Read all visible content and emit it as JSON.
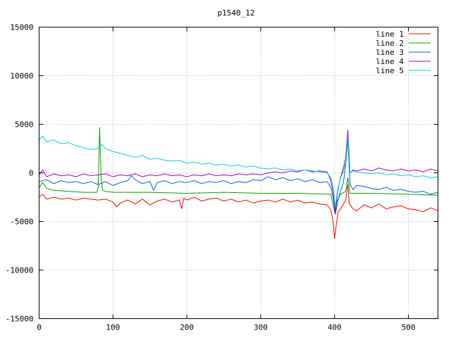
{
  "chart_data": {
    "type": "line",
    "title": "p1540_12",
    "xlabel": "",
    "ylabel": "",
    "xlim": [
      0,
      540
    ],
    "ylim": [
      -15000,
      15000
    ],
    "x_ticks": [
      0,
      100,
      200,
      300,
      400,
      500
    ],
    "y_ticks": [
      -15000,
      -10000,
      -5000,
      0,
      5000,
      10000,
      15000
    ],
    "grid": true,
    "legend_position": "top-right",
    "series": [
      {
        "name": "line 1",
        "color": "#ff0000",
        "points": [
          [
            0,
            -2500
          ],
          [
            5,
            -2200
          ],
          [
            10,
            -2700
          ],
          [
            20,
            -2500
          ],
          [
            30,
            -2700
          ],
          [
            40,
            -2600
          ],
          [
            50,
            -2800
          ],
          [
            60,
            -2600
          ],
          [
            70,
            -2700
          ],
          [
            80,
            -2800
          ],
          [
            90,
            -2700
          ],
          [
            100,
            -3000
          ],
          [
            105,
            -3500
          ],
          [
            110,
            -3100
          ],
          [
            120,
            -2800
          ],
          [
            130,
            -3200
          ],
          [
            140,
            -2700
          ],
          [
            150,
            -3300
          ],
          [
            160,
            -2900
          ],
          [
            170,
            -2700
          ],
          [
            180,
            -3000
          ],
          [
            190,
            -2800
          ],
          [
            193,
            -3700
          ],
          [
            196,
            -2600
          ],
          [
            200,
            -2800
          ],
          [
            210,
            -2500
          ],
          [
            220,
            -2900
          ],
          [
            230,
            -2700
          ],
          [
            240,
            -2600
          ],
          [
            250,
            -2900
          ],
          [
            260,
            -2700
          ],
          [
            270,
            -3000
          ],
          [
            280,
            -2800
          ],
          [
            290,
            -3100
          ],
          [
            300,
            -2900
          ],
          [
            310,
            -2800
          ],
          [
            320,
            -3000
          ],
          [
            330,
            -2700
          ],
          [
            340,
            -3000
          ],
          [
            350,
            -2800
          ],
          [
            360,
            -3100
          ],
          [
            370,
            -3000
          ],
          [
            380,
            -3200
          ],
          [
            390,
            -3300
          ],
          [
            395,
            -3800
          ],
          [
            398,
            -5000
          ],
          [
            400,
            -6800
          ],
          [
            402,
            -5500
          ],
          [
            405,
            -4000
          ],
          [
            410,
            -3500
          ],
          [
            415,
            -2800
          ],
          [
            418,
            -1200
          ],
          [
            420,
            -3200
          ],
          [
            425,
            -3700
          ],
          [
            430,
            -3900
          ],
          [
            440,
            -3300
          ],
          [
            450,
            -3600
          ],
          [
            460,
            -3200
          ],
          [
            470,
            -3700
          ],
          [
            480,
            -3500
          ],
          [
            490,
            -3400
          ],
          [
            500,
            -3700
          ],
          [
            510,
            -3800
          ],
          [
            520,
            -4000
          ],
          [
            530,
            -3600
          ],
          [
            540,
            -3900
          ]
        ]
      },
      {
        "name": "line 2",
        "color": "#00a000",
        "points": [
          [
            0,
            -1500
          ],
          [
            5,
            -1000
          ],
          [
            10,
            -1600
          ],
          [
            20,
            -1800
          ],
          [
            40,
            -1900
          ],
          [
            60,
            -2000
          ],
          [
            78,
            -2000
          ],
          [
            80,
            -1500
          ],
          [
            82,
            4700
          ],
          [
            84,
            -500
          ],
          [
            86,
            -1800
          ],
          [
            90,
            -1900
          ],
          [
            100,
            -2000
          ],
          [
            150,
            -2000
          ],
          [
            200,
            -2100
          ],
          [
            250,
            -2000
          ],
          [
            300,
            -2100
          ],
          [
            350,
            -2100
          ],
          [
            395,
            -2200
          ],
          [
            400,
            -4000
          ],
          [
            403,
            -3000
          ],
          [
            408,
            -2200
          ],
          [
            415,
            -1900
          ],
          [
            418,
            -500
          ],
          [
            421,
            -2100
          ],
          [
            450,
            -2100
          ],
          [
            500,
            -2200
          ],
          [
            540,
            -2300
          ]
        ]
      },
      {
        "name": "line 3",
        "color": "#0060e0",
        "points": [
          [
            0,
            -900
          ],
          [
            10,
            -700
          ],
          [
            20,
            -1100
          ],
          [
            30,
            -800
          ],
          [
            40,
            -1000
          ],
          [
            50,
            -900
          ],
          [
            60,
            -1100
          ],
          [
            70,
            -900
          ],
          [
            80,
            -1200
          ],
          [
            90,
            -900
          ],
          [
            100,
            -1300
          ],
          [
            110,
            -1000
          ],
          [
            120,
            -800
          ],
          [
            125,
            -300
          ],
          [
            130,
            -700
          ],
          [
            140,
            -1100
          ],
          [
            150,
            -900
          ],
          [
            155,
            -1800
          ],
          [
            160,
            -1000
          ],
          [
            170,
            -800
          ],
          [
            180,
            -1100
          ],
          [
            190,
            -900
          ],
          [
            200,
            -1000
          ],
          [
            210,
            -800
          ],
          [
            220,
            -1100
          ],
          [
            230,
            -900
          ],
          [
            240,
            -1000
          ],
          [
            250,
            -800
          ],
          [
            260,
            -1100
          ],
          [
            270,
            -900
          ],
          [
            280,
            -1000
          ],
          [
            290,
            -700
          ],
          [
            300,
            -800
          ],
          [
            310,
            -400
          ],
          [
            320,
            -700
          ],
          [
            330,
            -500
          ],
          [
            340,
            -800
          ],
          [
            350,
            -600
          ],
          [
            360,
            -900
          ],
          [
            370,
            -700
          ],
          [
            380,
            -1000
          ],
          [
            390,
            -900
          ],
          [
            395,
            -1500
          ],
          [
            398,
            -2500
          ],
          [
            401,
            -4300
          ],
          [
            404,
            -3000
          ],
          [
            408,
            -1900
          ],
          [
            412,
            -1000
          ],
          [
            415,
            800
          ],
          [
            418,
            3300
          ],
          [
            421,
            -1200
          ],
          [
            425,
            -1700
          ],
          [
            430,
            -1300
          ],
          [
            440,
            -1400
          ],
          [
            450,
            -1600
          ],
          [
            460,
            -1700
          ],
          [
            470,
            -1500
          ],
          [
            480,
            -1800
          ],
          [
            490,
            -1700
          ],
          [
            500,
            -1900
          ],
          [
            510,
            -2000
          ],
          [
            520,
            -1900
          ],
          [
            530,
            -2200
          ],
          [
            540,
            -2000
          ]
        ]
      },
      {
        "name": "line 4",
        "color": "#a000c0",
        "points": [
          [
            0,
            -200
          ],
          [
            5,
            300
          ],
          [
            10,
            -400
          ],
          [
            20,
            -100
          ],
          [
            30,
            -300
          ],
          [
            40,
            -200
          ],
          [
            50,
            -400
          ],
          [
            60,
            -100
          ],
          [
            70,
            -300
          ],
          [
            80,
            -200
          ],
          [
            90,
            -100
          ],
          [
            100,
            -400
          ],
          [
            110,
            -200
          ],
          [
            120,
            -300
          ],
          [
            130,
            -100
          ],
          [
            140,
            -400
          ],
          [
            150,
            -200
          ],
          [
            160,
            -300
          ],
          [
            170,
            -100
          ],
          [
            180,
            -300
          ],
          [
            190,
            -200
          ],
          [
            200,
            -400
          ],
          [
            210,
            -200
          ],
          [
            220,
            -300
          ],
          [
            230,
            -100
          ],
          [
            240,
            -300
          ],
          [
            250,
            -200
          ],
          [
            260,
            -300
          ],
          [
            270,
            -100
          ],
          [
            280,
            -200
          ],
          [
            290,
            -100
          ],
          [
            300,
            -200
          ],
          [
            310,
            0
          ],
          [
            320,
            100
          ],
          [
            330,
            0
          ],
          [
            340,
            200
          ],
          [
            350,
            100
          ],
          [
            360,
            300
          ],
          [
            370,
            100
          ],
          [
            380,
            200
          ],
          [
            390,
            100
          ],
          [
            395,
            -800
          ],
          [
            398,
            -2000
          ],
          [
            401,
            -4200
          ],
          [
            404,
            -2000
          ],
          [
            408,
            -500
          ],
          [
            412,
            500
          ],
          [
            415,
            1500
          ],
          [
            418,
            4400
          ],
          [
            421,
            0
          ],
          [
            425,
            300
          ],
          [
            430,
            200
          ],
          [
            440,
            400
          ],
          [
            450,
            200
          ],
          [
            460,
            500
          ],
          [
            470,
            300
          ],
          [
            480,
            200
          ],
          [
            490,
            400
          ],
          [
            500,
            200
          ],
          [
            510,
            300
          ],
          [
            520,
            100
          ],
          [
            530,
            400
          ],
          [
            540,
            200
          ]
        ]
      },
      {
        "name": "line 5",
        "color": "#00d0d0",
        "points": [
          [
            0,
            3400
          ],
          [
            5,
            3800
          ],
          [
            10,
            3200
          ],
          [
            20,
            3400
          ],
          [
            30,
            3000
          ],
          [
            40,
            3100
          ],
          [
            50,
            2800
          ],
          [
            60,
            2600
          ],
          [
            70,
            2400
          ],
          [
            80,
            2500
          ],
          [
            85,
            2900
          ],
          [
            90,
            2500
          ],
          [
            100,
            2200
          ],
          [
            110,
            2000
          ],
          [
            120,
            1800
          ],
          [
            130,
            1600
          ],
          [
            140,
            1800
          ],
          [
            150,
            1400
          ],
          [
            160,
            1500
          ],
          [
            170,
            1300
          ],
          [
            180,
            1200
          ],
          [
            190,
            1300
          ],
          [
            200,
            1000
          ],
          [
            210,
            1100
          ],
          [
            220,
            900
          ],
          [
            230,
            1000
          ],
          [
            240,
            800
          ],
          [
            250,
            900
          ],
          [
            260,
            700
          ],
          [
            270,
            800
          ],
          [
            280,
            600
          ],
          [
            290,
            700
          ],
          [
            300,
            500
          ],
          [
            310,
            400
          ],
          [
            320,
            500
          ],
          [
            330,
            300
          ],
          [
            340,
            400
          ],
          [
            350,
            200
          ],
          [
            360,
            300
          ],
          [
            370,
            200
          ],
          [
            380,
            100
          ],
          [
            390,
            0
          ],
          [
            395,
            -500
          ],
          [
            398,
            -1500
          ],
          [
            401,
            -3500
          ],
          [
            404,
            -1800
          ],
          [
            408,
            -600
          ],
          [
            412,
            200
          ],
          [
            415,
            1000
          ],
          [
            418,
            3600
          ],
          [
            421,
            0
          ],
          [
            425,
            200
          ],
          [
            430,
            100
          ],
          [
            440,
            0
          ],
          [
            450,
            -100
          ],
          [
            460,
            0
          ],
          [
            470,
            -200
          ],
          [
            480,
            -100
          ],
          [
            490,
            -300
          ],
          [
            500,
            -200
          ],
          [
            510,
            -400
          ],
          [
            520,
            -300
          ],
          [
            530,
            -500
          ],
          [
            540,
            -400
          ]
        ]
      }
    ]
  }
}
